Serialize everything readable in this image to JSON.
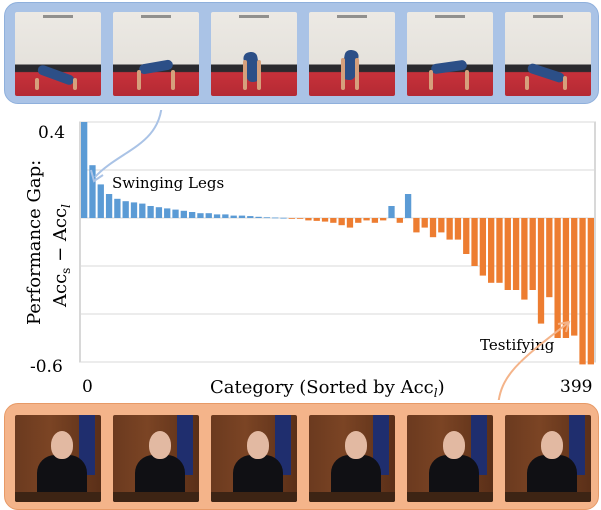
{
  "top_strip": {
    "label": "Swinging Legs",
    "frames": 6
  },
  "bottom_strip": {
    "label": "Testifying",
    "frames": 6
  },
  "colors": {
    "positive": "#5b9bd5",
    "negative": "#ed7d31",
    "top_strip": "#aac3e6",
    "bottom_strip": "#f4b48a"
  },
  "chart_data": {
    "type": "bar",
    "ylabel_line1": "Performance Gap:",
    "ylabel_line2": "Acc",
    "xlabel": "Category (Sorted by Acc",
    "x_tick_start": "0",
    "x_tick_end": "399",
    "y_tick_top": "0.4",
    "y_tick_bottom": "-0.6",
    "ylim": [
      -0.6,
      0.4
    ],
    "annotations": [
      "Swinging Legs",
      "Testifying"
    ],
    "values": [
      0.4,
      0.22,
      0.14,
      0.1,
      0.08,
      0.07,
      0.065,
      0.06,
      0.05,
      0.045,
      0.04,
      0.035,
      0.03,
      0.025,
      0.02,
      0.02,
      0.015,
      0.015,
      0.01,
      0.01,
      0.008,
      0.005,
      0.003,
      0.002,
      0.001,
      -0.001,
      -0.002,
      -0.01,
      -0.012,
      -0.015,
      -0.02,
      -0.03,
      -0.04,
      -0.02,
      -0.01,
      -0.02,
      -0.01,
      0.05,
      -0.02,
      0.1,
      -0.06,
      -0.04,
      -0.08,
      -0.06,
      -0.09,
      -0.09,
      -0.15,
      -0.2,
      -0.24,
      -0.27,
      -0.27,
      -0.3,
      -0.3,
      -0.34,
      -0.3,
      -0.44,
      -0.33,
      -0.5,
      -0.5,
      -0.49,
      -0.61,
      -0.61
    ]
  }
}
